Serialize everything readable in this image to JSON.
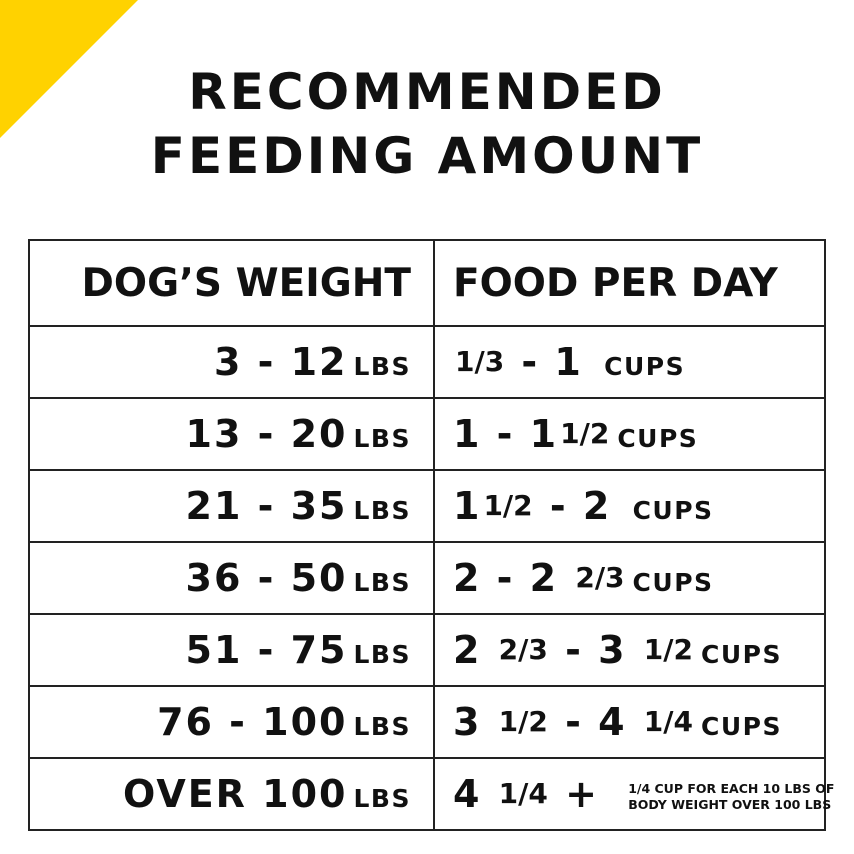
{
  "accent_color": "#FFD200",
  "title": [
    "RECOMMENDED",
    "FEEDING AMOUNT"
  ],
  "table": {
    "headers": [
      "DOG’S WEIGHT",
      "FOOD PER DAY"
    ],
    "rows": [
      {
        "weight": "3 - 12",
        "weight_unit": "LBS",
        "food": [
          {
            "k": "frac",
            "t": "1/3"
          },
          {
            "k": "num",
            "t": " - 1 "
          },
          {
            "k": "unit",
            "t": "CUPS"
          }
        ]
      },
      {
        "weight": "13 - 20",
        "weight_unit": "LBS",
        "food": [
          {
            "k": "num",
            "t": "1 - 1"
          },
          {
            "k": "frac",
            "t": "1/2"
          },
          {
            "k": "unit",
            "t": "CUPS"
          }
        ]
      },
      {
        "weight": "21 - 35",
        "weight_unit": "LBS",
        "food": [
          {
            "k": "num",
            "t": "1"
          },
          {
            "k": "frac",
            "t": "1/2"
          },
          {
            "k": "num",
            "t": " - 2 "
          },
          {
            "k": "unit",
            "t": "CUPS"
          }
        ]
      },
      {
        "weight": "36 - 50",
        "weight_unit": "LBS",
        "food": [
          {
            "k": "num",
            "t": "2 - 2 "
          },
          {
            "k": "frac",
            "t": "2/3"
          },
          {
            "k": "unit",
            "t": "CUPS"
          }
        ]
      },
      {
        "weight": "51 - 75",
        "weight_unit": "LBS",
        "food": [
          {
            "k": "num",
            "t": "2 "
          },
          {
            "k": "frac",
            "t": "2/3"
          },
          {
            "k": "num",
            "t": " - 3 "
          },
          {
            "k": "frac",
            "t": "1/2"
          },
          {
            "k": "unit",
            "t": "CUPS"
          }
        ]
      },
      {
        "weight": "76 - 100",
        "weight_unit": "LBS",
        "food": [
          {
            "k": "num",
            "t": "3 "
          },
          {
            "k": "frac",
            "t": "1/2"
          },
          {
            "k": "num",
            "t": " - 4 "
          },
          {
            "k": "frac",
            "t": "1/4"
          },
          {
            "k": "unit",
            "t": "CUPS"
          }
        ]
      },
      {
        "weight": "OVER 100",
        "weight_unit": "LBS",
        "food": [
          {
            "k": "num",
            "t": "4 "
          },
          {
            "k": "frac",
            "t": "1/4"
          },
          {
            "k": "num",
            "t": " + "
          },
          {
            "k": "note",
            "t": "1/4 CUP FOR EACH 10 LBS OF\nBODY WEIGHT OVER 100 LBS"
          }
        ]
      }
    ]
  }
}
